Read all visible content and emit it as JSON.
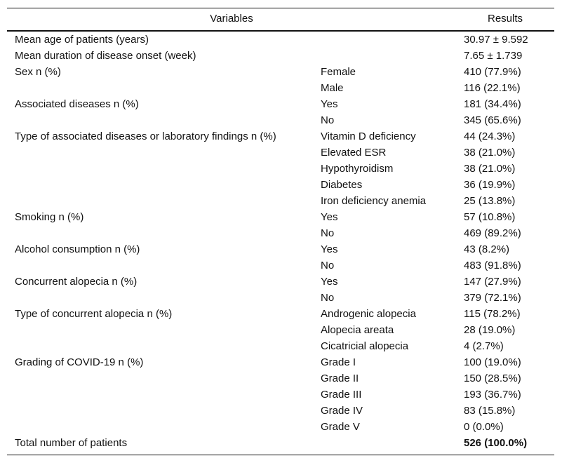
{
  "table": {
    "header": [
      "Variables",
      "Results"
    ],
    "rows": [
      [
        "Mean age of patients (years)",
        null,
        "30.97 ± 9.592"
      ],
      [
        "Mean duration of disease onset (week)",
        null,
        "7.65 ± 1.739"
      ],
      [
        "Sex n (%)",
        "Female",
        "410 (77.9%)"
      ],
      [
        null,
        "Male",
        "116 (22.1%)"
      ],
      [
        "Associated diseases n (%)",
        "Yes",
        "181 (34.4%)"
      ],
      [
        null,
        "No",
        "345 (65.6%)"
      ],
      [
        "Type of associated diseases or laboratory findings n (%)",
        "Vitamin D deficiency",
        "44 (24.3%)"
      ],
      [
        null,
        "Elevated ESR",
        "38 (21.0%)"
      ],
      [
        null,
        "Hypothyroidism",
        "38 (21.0%)"
      ],
      [
        null,
        "Diabetes",
        "36 (19.9%)"
      ],
      [
        null,
        "Iron deficiency anemia",
        "25 (13.8%)"
      ],
      [
        "Smoking n (%)",
        "Yes",
        "57 (10.8%)"
      ],
      [
        null,
        "No",
        "469 (89.2%)"
      ],
      [
        "Alcohol consumption n (%)",
        "Yes",
        "43 (8.2%)"
      ],
      [
        null,
        "No",
        "483 (91.8%)"
      ],
      [
        "Concurrent alopecia n (%)",
        "Yes",
        "147 (27.9%)"
      ],
      [
        null,
        "No",
        "379 (72.1%)"
      ],
      [
        "Type of concurrent alopecia n (%)",
        "Androgenic alopecia",
        "115 (78.2%)"
      ],
      [
        null,
        "Alopecia areata",
        "28 (19.0%)"
      ],
      [
        null,
        "Cicatricial alopecia",
        "4 (2.7%)"
      ],
      [
        "Grading of COVID-19 n (%)",
        "Grade I",
        "100 (19.0%)"
      ],
      [
        null,
        "Grade II",
        "150 (28.5%)"
      ],
      [
        null,
        "Grade III",
        "193 (36.7%)"
      ],
      [
        null,
        "Grade IV",
        "83 (15.8%)"
      ],
      [
        null,
        "Grade V",
        "0 (0.0%)"
      ],
      [
        "Total number of patients",
        null,
        "526 (100.0%)"
      ]
    ]
  }
}
